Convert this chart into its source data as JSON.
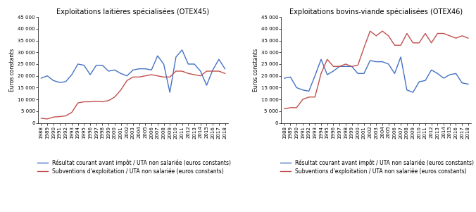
{
  "title_left": "Exploitations laitières spécialisées (OTEX45)",
  "title_right": "Exploitations bovins-viande spécialisées (OTEX46)",
  "ylabel": "Euros constants",
  "years": [
    1988,
    1989,
    1990,
    1991,
    1992,
    1993,
    1994,
    1995,
    1996,
    1997,
    1998,
    1999,
    2000,
    2001,
    2002,
    2003,
    2004,
    2005,
    2006,
    2007,
    2008,
    2009,
    2010,
    2011,
    2012,
    2013,
    2014,
    2015,
    2016,
    2017,
    2018
  ],
  "left_blue": [
    19000,
    20000,
    18000,
    17200,
    17500,
    20500,
    25000,
    24500,
    20500,
    24500,
    24500,
    22000,
    22500,
    21000,
    20000,
    22500,
    23000,
    23000,
    22500,
    28500,
    25000,
    13000,
    28000,
    31000,
    25000,
    25000,
    22000,
    16000,
    22500,
    27000,
    23000
  ],
  "left_red": [
    2000,
    1700,
    2500,
    2700,
    3000,
    4500,
    8500,
    9000,
    9000,
    9200,
    9000,
    9500,
    11000,
    14000,
    18000,
    19500,
    19500,
    20000,
    20500,
    20000,
    19500,
    19500,
    22000,
    22000,
    21000,
    20500,
    20000,
    22000,
    22000,
    22000,
    21000
  ],
  "right_blue": [
    19000,
    19500,
    15000,
    14000,
    13500,
    20000,
    27000,
    20500,
    22000,
    24000,
    24000,
    24000,
    21000,
    21000,
    26500,
    26000,
    26000,
    25000,
    21000,
    28000,
    14000,
    13000,
    17500,
    18000,
    22500,
    21000,
    19000,
    20500,
    21000,
    17000,
    16500
  ],
  "right_red": [
    6000,
    6500,
    6500,
    10000,
    11000,
    11000,
    21000,
    27000,
    24000,
    24000,
    25000,
    24000,
    24500,
    32000,
    39000,
    37000,
    39000,
    37000,
    33000,
    33000,
    38000,
    34000,
    34000,
    38000,
    34000,
    38000,
    38000,
    37000,
    36000,
    37000,
    36000
  ],
  "ylim": [
    0,
    45000
  ],
  "yticks": [
    0,
    5000,
    10000,
    15000,
    20000,
    25000,
    30000,
    35000,
    40000,
    45000
  ],
  "legend_blue": "Résultat courant avant impôt / UTA non salariée (euros constants)",
  "legend_red": "Subventions d'exploitation / UTA non salariée (euros constants)",
  "blue_color": "#4472C4",
  "red_color": "#C0504D",
  "linewidth": 1.0,
  "title_fontsize": 7,
  "tick_fontsize": 5,
  "legend_fontsize": 5.5,
  "ylabel_fontsize": 5.5
}
